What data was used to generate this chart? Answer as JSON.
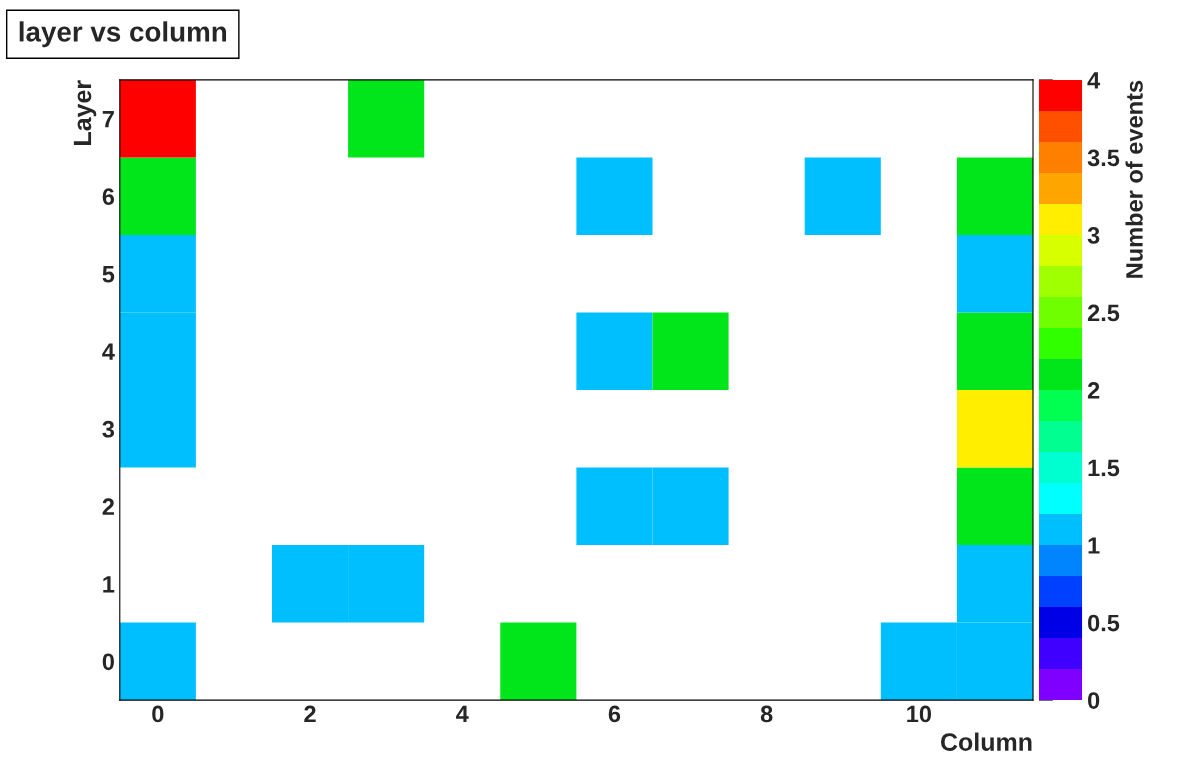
{
  "chart_data": {
    "type": "heatmap",
    "title": "layer vs column",
    "xlabel": "Column",
    "ylabel": "Layer",
    "clabel": "Number of events",
    "categories": [
      "0",
      null,
      "2",
      null,
      "4",
      null,
      "6",
      null,
      "8",
      null,
      "10",
      null
    ],
    "y_categories": [
      "7",
      "6",
      "5",
      "4",
      "3",
      "2",
      "1",
      "0"
    ],
    "cells": [
      [
        4,
        null,
        null,
        2,
        null,
        null,
        null,
        null,
        null,
        null,
        null,
        null
      ],
      [
        2,
        null,
        null,
        null,
        null,
        null,
        1,
        null,
        null,
        1,
        null,
        2
      ],
      [
        1,
        null,
        null,
        null,
        null,
        null,
        null,
        null,
        null,
        null,
        null,
        1
      ],
      [
        1,
        null,
        null,
        null,
        null,
        null,
        1,
        2,
        null,
        null,
        null,
        2
      ],
      [
        1,
        null,
        null,
        null,
        null,
        null,
        null,
        null,
        null,
        null,
        null,
        3
      ],
      [
        null,
        null,
        null,
        null,
        null,
        null,
        1,
        1,
        null,
        null,
        null,
        2
      ],
      [
        null,
        null,
        1,
        1,
        null,
        null,
        null,
        null,
        null,
        null,
        null,
        1
      ],
      [
        1,
        null,
        null,
        null,
        null,
        2,
        null,
        null,
        null,
        null,
        1,
        1
      ]
    ],
    "clim": [
      0,
      4
    ],
    "cticks": [
      0,
      0.5,
      1,
      1.5,
      2,
      2.5,
      3,
      3.5,
      4
    ]
  }
}
